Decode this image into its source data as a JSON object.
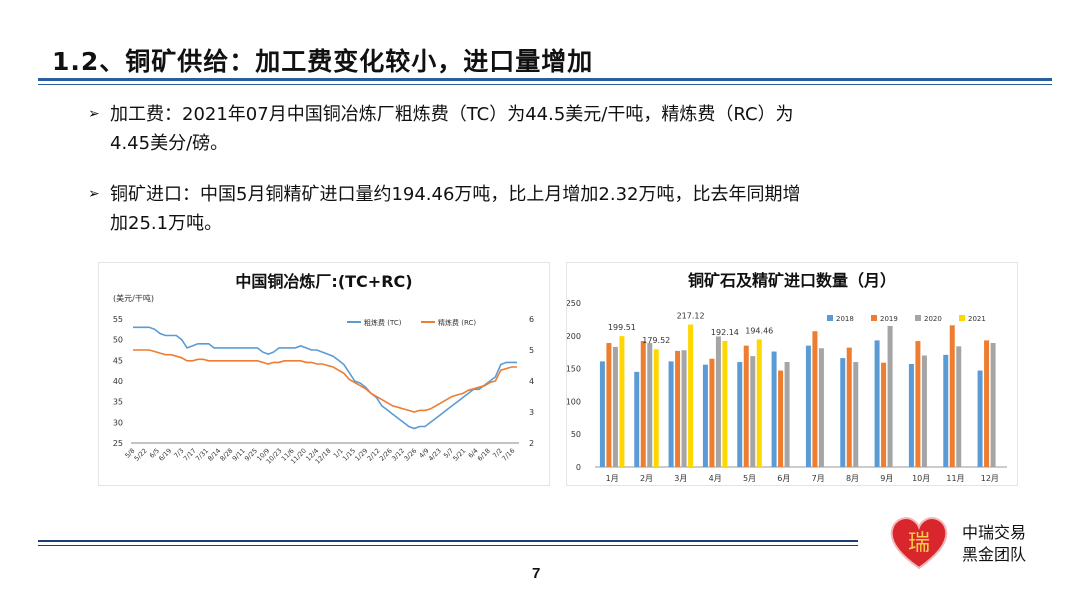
{
  "header": {
    "title": "1.2、铜矿供给：加工费变化较小，进口量增加"
  },
  "bullets": [
    {
      "marker": "➢",
      "line1": "加工费：2021年07月中国铜冶炼厂粗炼费（TC）为44.5美元/干吨，精炼费（RC）为",
      "line2": "4.45美分/磅。"
    },
    {
      "marker": "➢",
      "line1": "铜矿进口：中国5月铜精矿进口量约194.46万吨，比上月增加2.32万吨，比去年同期增",
      "line2": "加25.1万吨。"
    }
  ],
  "chart_data": [
    {
      "type": "line",
      "title": "中国铜冶炼厂:(TC+RC)",
      "unit_label": "(美元/干吨)",
      "y_left": {
        "ticks": [
          25,
          30,
          35,
          40,
          45,
          50,
          55
        ],
        "range": [
          25,
          55
        ]
      },
      "y_right": {
        "ticks": [
          2,
          3,
          4,
          5,
          6
        ],
        "range": [
          2,
          6
        ]
      },
      "x_tick_labels": [
        "5/8",
        "5/22",
        "6/5",
        "6/19",
        "7/3",
        "7/17",
        "7/31",
        "8/14",
        "8/28",
        "9/11",
        "9/25",
        "10/9",
        "10/23",
        "11/6",
        "11/20",
        "12/4",
        "12/18",
        "1/1",
        "1/15",
        "1/29",
        "2/12",
        "2/26",
        "3/12",
        "3/26",
        "4/9",
        "4/23",
        "5/7",
        "5/21",
        "6/4",
        "6/18",
        "7/2",
        "7/16"
      ],
      "series": [
        {
          "name": "粗炼费 (TC)",
          "color": "#5b9bd5",
          "axis": "left",
          "values": [
            53,
            53,
            53,
            53,
            52.5,
            51.5,
            51,
            51,
            51,
            50,
            48,
            48.5,
            49,
            49,
            49,
            48,
            48,
            48,
            48,
            48,
            48,
            48,
            48,
            48,
            47,
            46.5,
            47,
            48,
            48,
            48,
            48,
            48.5,
            48,
            47.5,
            47.5,
            47,
            46.5,
            46,
            45,
            44,
            42,
            40,
            39.5,
            38.5,
            37,
            36,
            34,
            33,
            32,
            31,
            30,
            29,
            28.5,
            29,
            29,
            30,
            31,
            32,
            33,
            34,
            35,
            36,
            37,
            38,
            38,
            39,
            40,
            41,
            44,
            44.5,
            44.5,
            44.5
          ]
        },
        {
          "name": "精炼费 (RC)",
          "color": "#ed7d31",
          "axis": "right",
          "values": [
            5.0,
            5.0,
            5.0,
            5.0,
            4.95,
            4.9,
            4.85,
            4.85,
            4.8,
            4.75,
            4.65,
            4.65,
            4.7,
            4.7,
            4.65,
            4.65,
            4.65,
            4.65,
            4.65,
            4.65,
            4.65,
            4.65,
            4.65,
            4.65,
            4.6,
            4.55,
            4.6,
            4.6,
            4.65,
            4.65,
            4.65,
            4.65,
            4.6,
            4.6,
            4.55,
            4.55,
            4.5,
            4.45,
            4.35,
            4.25,
            4.05,
            3.95,
            3.85,
            3.75,
            3.6,
            3.5,
            3.4,
            3.3,
            3.2,
            3.15,
            3.1,
            3.05,
            3.0,
            3.05,
            3.05,
            3.1,
            3.2,
            3.3,
            3.4,
            3.5,
            3.55,
            3.6,
            3.7,
            3.75,
            3.8,
            3.85,
            3.95,
            4.0,
            4.35,
            4.4,
            4.45,
            4.45
          ]
        }
      ]
    },
    {
      "type": "bar",
      "title": "铜矿石及精矿进口数量（月）",
      "categories": [
        "1月",
        "2月",
        "3月",
        "4月",
        "5月",
        "6月",
        "7月",
        "8月",
        "9月",
        "10月",
        "11月",
        "12月"
      ],
      "ylim": [
        0,
        250
      ],
      "y_ticks": [
        0,
        50,
        100,
        150,
        200,
        250
      ],
      "series": [
        {
          "name": "2018",
          "color": "#5b9bd5",
          "values": [
            161,
            145,
            161,
            156,
            160,
            176,
            185,
            166,
            193,
            157,
            171,
            147
          ]
        },
        {
          "name": "2019",
          "color": "#ed7d31",
          "values": [
            189,
            192,
            177,
            165,
            185,
            147,
            207,
            182,
            159,
            192,
            216,
            193
          ]
        },
        {
          "name": "2020",
          "color": "#a5a5a5",
          "values": [
            183,
            189,
            178,
            199,
            169,
            160,
            181,
            160,
            215,
            170,
            184,
            189
          ]
        },
        {
          "name": "2021",
          "color": "#ffd700",
          "values": [
            199.51,
            179.52,
            217.12,
            192.14,
            194.46,
            null,
            null,
            null,
            null,
            null,
            null,
            null
          ]
        }
      ],
      "data_labels": [
        {
          "series": "2021",
          "index": 0,
          "text": "199.51"
        },
        {
          "series": "2021",
          "index": 1,
          "text": "179.52"
        },
        {
          "series": "2021",
          "index": 2,
          "text": "217.12"
        },
        {
          "series": "2021",
          "index": 3,
          "text": "192.14"
        },
        {
          "series": "2021",
          "index": 4,
          "text": "194.46"
        }
      ]
    }
  ],
  "footer": {
    "page_number": "7",
    "brand_line1": "中瑞交易",
    "brand_line2": "黑金团队",
    "logo_char": "瑞"
  }
}
